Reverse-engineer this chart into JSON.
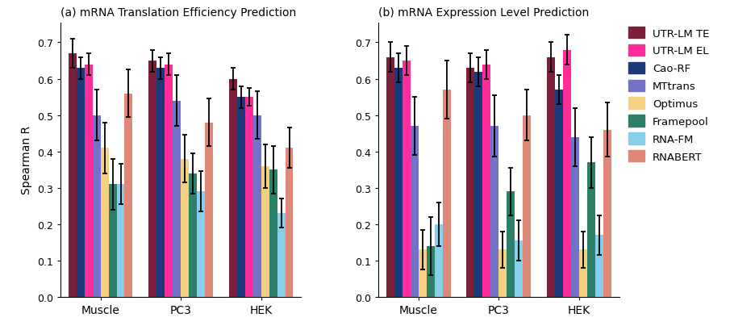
{
  "title_a": "(a) mRNA Translation Efficiency Prediction",
  "title_b": "(b) mRNA Expression Level Prediction",
  "ylabel": "Spearman R",
  "groups": [
    "Muscle",
    "PC3",
    "HEK"
  ],
  "series": [
    "UTR-LM TE",
    "Cao-RF",
    "UTR-LM EL",
    "MTtrans",
    "Optimus",
    "Framepool",
    "RNA-FM",
    "RNABERT"
  ],
  "legend_order": [
    "UTR-LM TE",
    "UTR-LM EL",
    "Cao-RF",
    "MTtrans",
    "Optimus",
    "Framepool",
    "RNA-FM",
    "RNABERT"
  ],
  "colors": [
    "#7b1f3a",
    "#ff2d9b",
    "#1a3a7c",
    "#7272c8",
    "#f5d080",
    "#2d8068",
    "#87ceeb",
    "#e08878"
  ],
  "legend_colors": [
    "#7b1f3a",
    "#ff2d9b",
    "#1a3a7c",
    "#7272c8",
    "#f5d080",
    "#2d8068",
    "#87ceeb",
    "#e08878"
  ],
  "panel_a": {
    "values": [
      [
        0.67,
        0.65,
        0.6
      ],
      [
        0.64,
        0.64,
        0.55
      ],
      [
        0.63,
        0.63,
        0.55
      ],
      [
        0.5,
        0.54,
        0.5
      ],
      [
        0.41,
        0.38,
        0.36
      ],
      [
        0.31,
        0.34,
        0.35
      ],
      [
        0.31,
        0.29,
        0.23
      ],
      [
        0.56,
        0.48,
        0.41
      ]
    ],
    "errors": [
      [
        0.04,
        0.03,
        0.03
      ],
      [
        0.03,
        0.03,
        0.025
      ],
      [
        0.03,
        0.03,
        0.03
      ],
      [
        0.07,
        0.07,
        0.065
      ],
      [
        0.07,
        0.065,
        0.06
      ],
      [
        0.07,
        0.055,
        0.065
      ],
      [
        0.055,
        0.055,
        0.04
      ],
      [
        0.065,
        0.065,
        0.055
      ]
    ]
  },
  "panel_b": {
    "values": [
      [
        0.66,
        0.63,
        0.66
      ],
      [
        0.65,
        0.64,
        0.68
      ],
      [
        0.63,
        0.62,
        0.57
      ],
      [
        0.47,
        0.47,
        0.44
      ],
      [
        0.13,
        0.13,
        0.13
      ],
      [
        0.14,
        0.29,
        0.37
      ],
      [
        0.2,
        0.155,
        0.17
      ],
      [
        0.57,
        0.5,
        0.46
      ]
    ],
    "errors": [
      [
        0.04,
        0.04,
        0.04
      ],
      [
        0.04,
        0.04,
        0.04
      ],
      [
        0.04,
        0.04,
        0.04
      ],
      [
        0.08,
        0.085,
        0.08
      ],
      [
        0.055,
        0.05,
        0.05
      ],
      [
        0.08,
        0.065,
        0.07
      ],
      [
        0.06,
        0.055,
        0.055
      ],
      [
        0.08,
        0.07,
        0.075
      ]
    ]
  },
  "ylim": [
    0.0,
    0.755
  ],
  "yticks": [
    0.0,
    0.1,
    0.2,
    0.3,
    0.4,
    0.5,
    0.6,
    0.7
  ]
}
